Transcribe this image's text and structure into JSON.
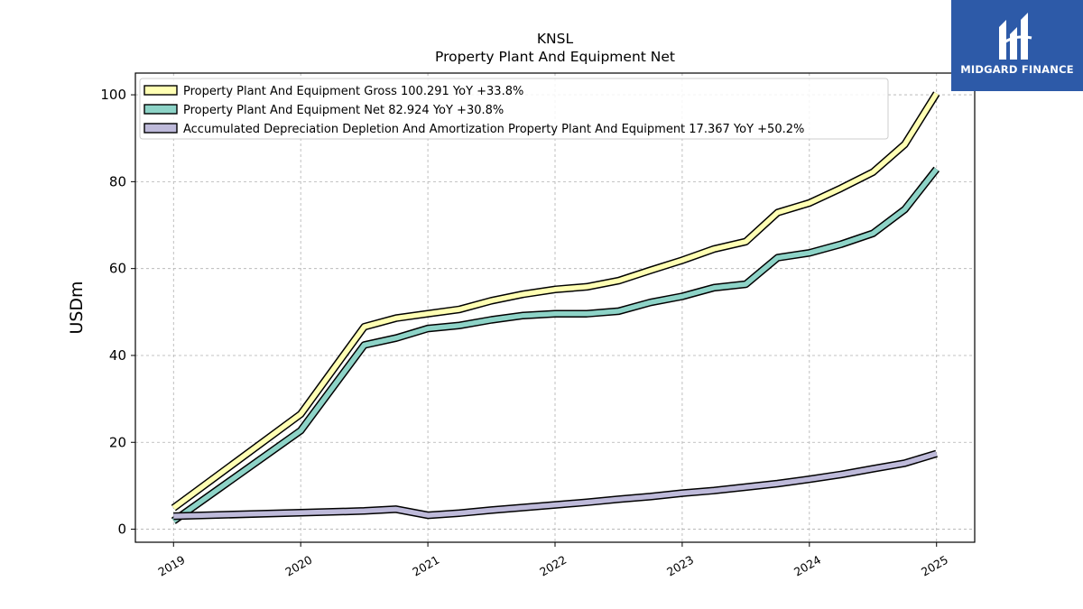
{
  "chart_data": {
    "type": "line",
    "title": "KNSL",
    "subtitle": "Property Plant And Equipment Net",
    "ylabel": "USDm",
    "xlabel": "",
    "ylim": [
      -3,
      105
    ],
    "xlim": [
      2018.7,
      2025.3
    ],
    "yticks": [
      0,
      20,
      40,
      60,
      80,
      100
    ],
    "xticks": [
      {
        "value": 2019.0,
        "label": "2019"
      },
      {
        "value": 2020.0,
        "label": "2020"
      },
      {
        "value": 2021.0,
        "label": "2021"
      },
      {
        "value": 2022.0,
        "label": "2022"
      },
      {
        "value": 2023.0,
        "label": "2023"
      },
      {
        "value": 2024.0,
        "label": "2024"
      },
      {
        "value": 2025.0,
        "label": "2025"
      }
    ],
    "grid": true,
    "legend_position": "top-left",
    "x": [
      2019.0,
      2020.0,
      2020.5,
      2020.75,
      2021.0,
      2021.25,
      2021.5,
      2021.75,
      2022.0,
      2022.25,
      2022.5,
      2022.75,
      2023.0,
      2023.25,
      2023.5,
      2023.75,
      2024.0,
      2024.25,
      2024.5,
      2024.75,
      2025.0
    ],
    "series": [
      {
        "name": "Property Plant And Equipment Gross",
        "legend_label": "Property Plant And Equipment Gross  100.291 YoY +33.8%",
        "color": "#ffffb3",
        "values": [
          4.9,
          26.5,
          46.6,
          48.6,
          49.6,
          50.6,
          52.6,
          54.1,
          55.2,
          55.8,
          57.2,
          59.6,
          61.9,
          64.5,
          66.2,
          72.9,
          75.1,
          78.5,
          82.2,
          88.6,
          100.3
        ]
      },
      {
        "name": "Property Plant And Equipment Net",
        "legend_label": "Property Plant And Equipment Net  82.924 YoY +30.8%",
        "color": "#8dd3c7",
        "values": [
          1.9,
          22.7,
          42.4,
          44.0,
          46.2,
          46.9,
          48.2,
          49.2,
          49.6,
          49.6,
          50.2,
          52.2,
          53.6,
          55.6,
          56.4,
          62.5,
          63.6,
          65.6,
          68.1,
          73.6,
          82.9
        ]
      },
      {
        "name": "Accumulated Depreciation Depletion And Amortization Property Plant And Equipment",
        "legend_label": "Accumulated Depreciation Depletion And Amortization Property Plant And Equipment  17.367 YoY +50.2%",
        "color": "#bebada",
        "values": [
          3.0,
          3.8,
          4.2,
          4.6,
          3.2,
          3.7,
          4.4,
          5.0,
          5.6,
          6.2,
          6.9,
          7.5,
          8.3,
          8.9,
          9.7,
          10.5,
          11.5,
          12.6,
          13.9,
          15.2,
          17.4
        ]
      }
    ]
  },
  "logo": {
    "text": "MIDGARD FINANCE",
    "background": "#2d5aa8"
  }
}
